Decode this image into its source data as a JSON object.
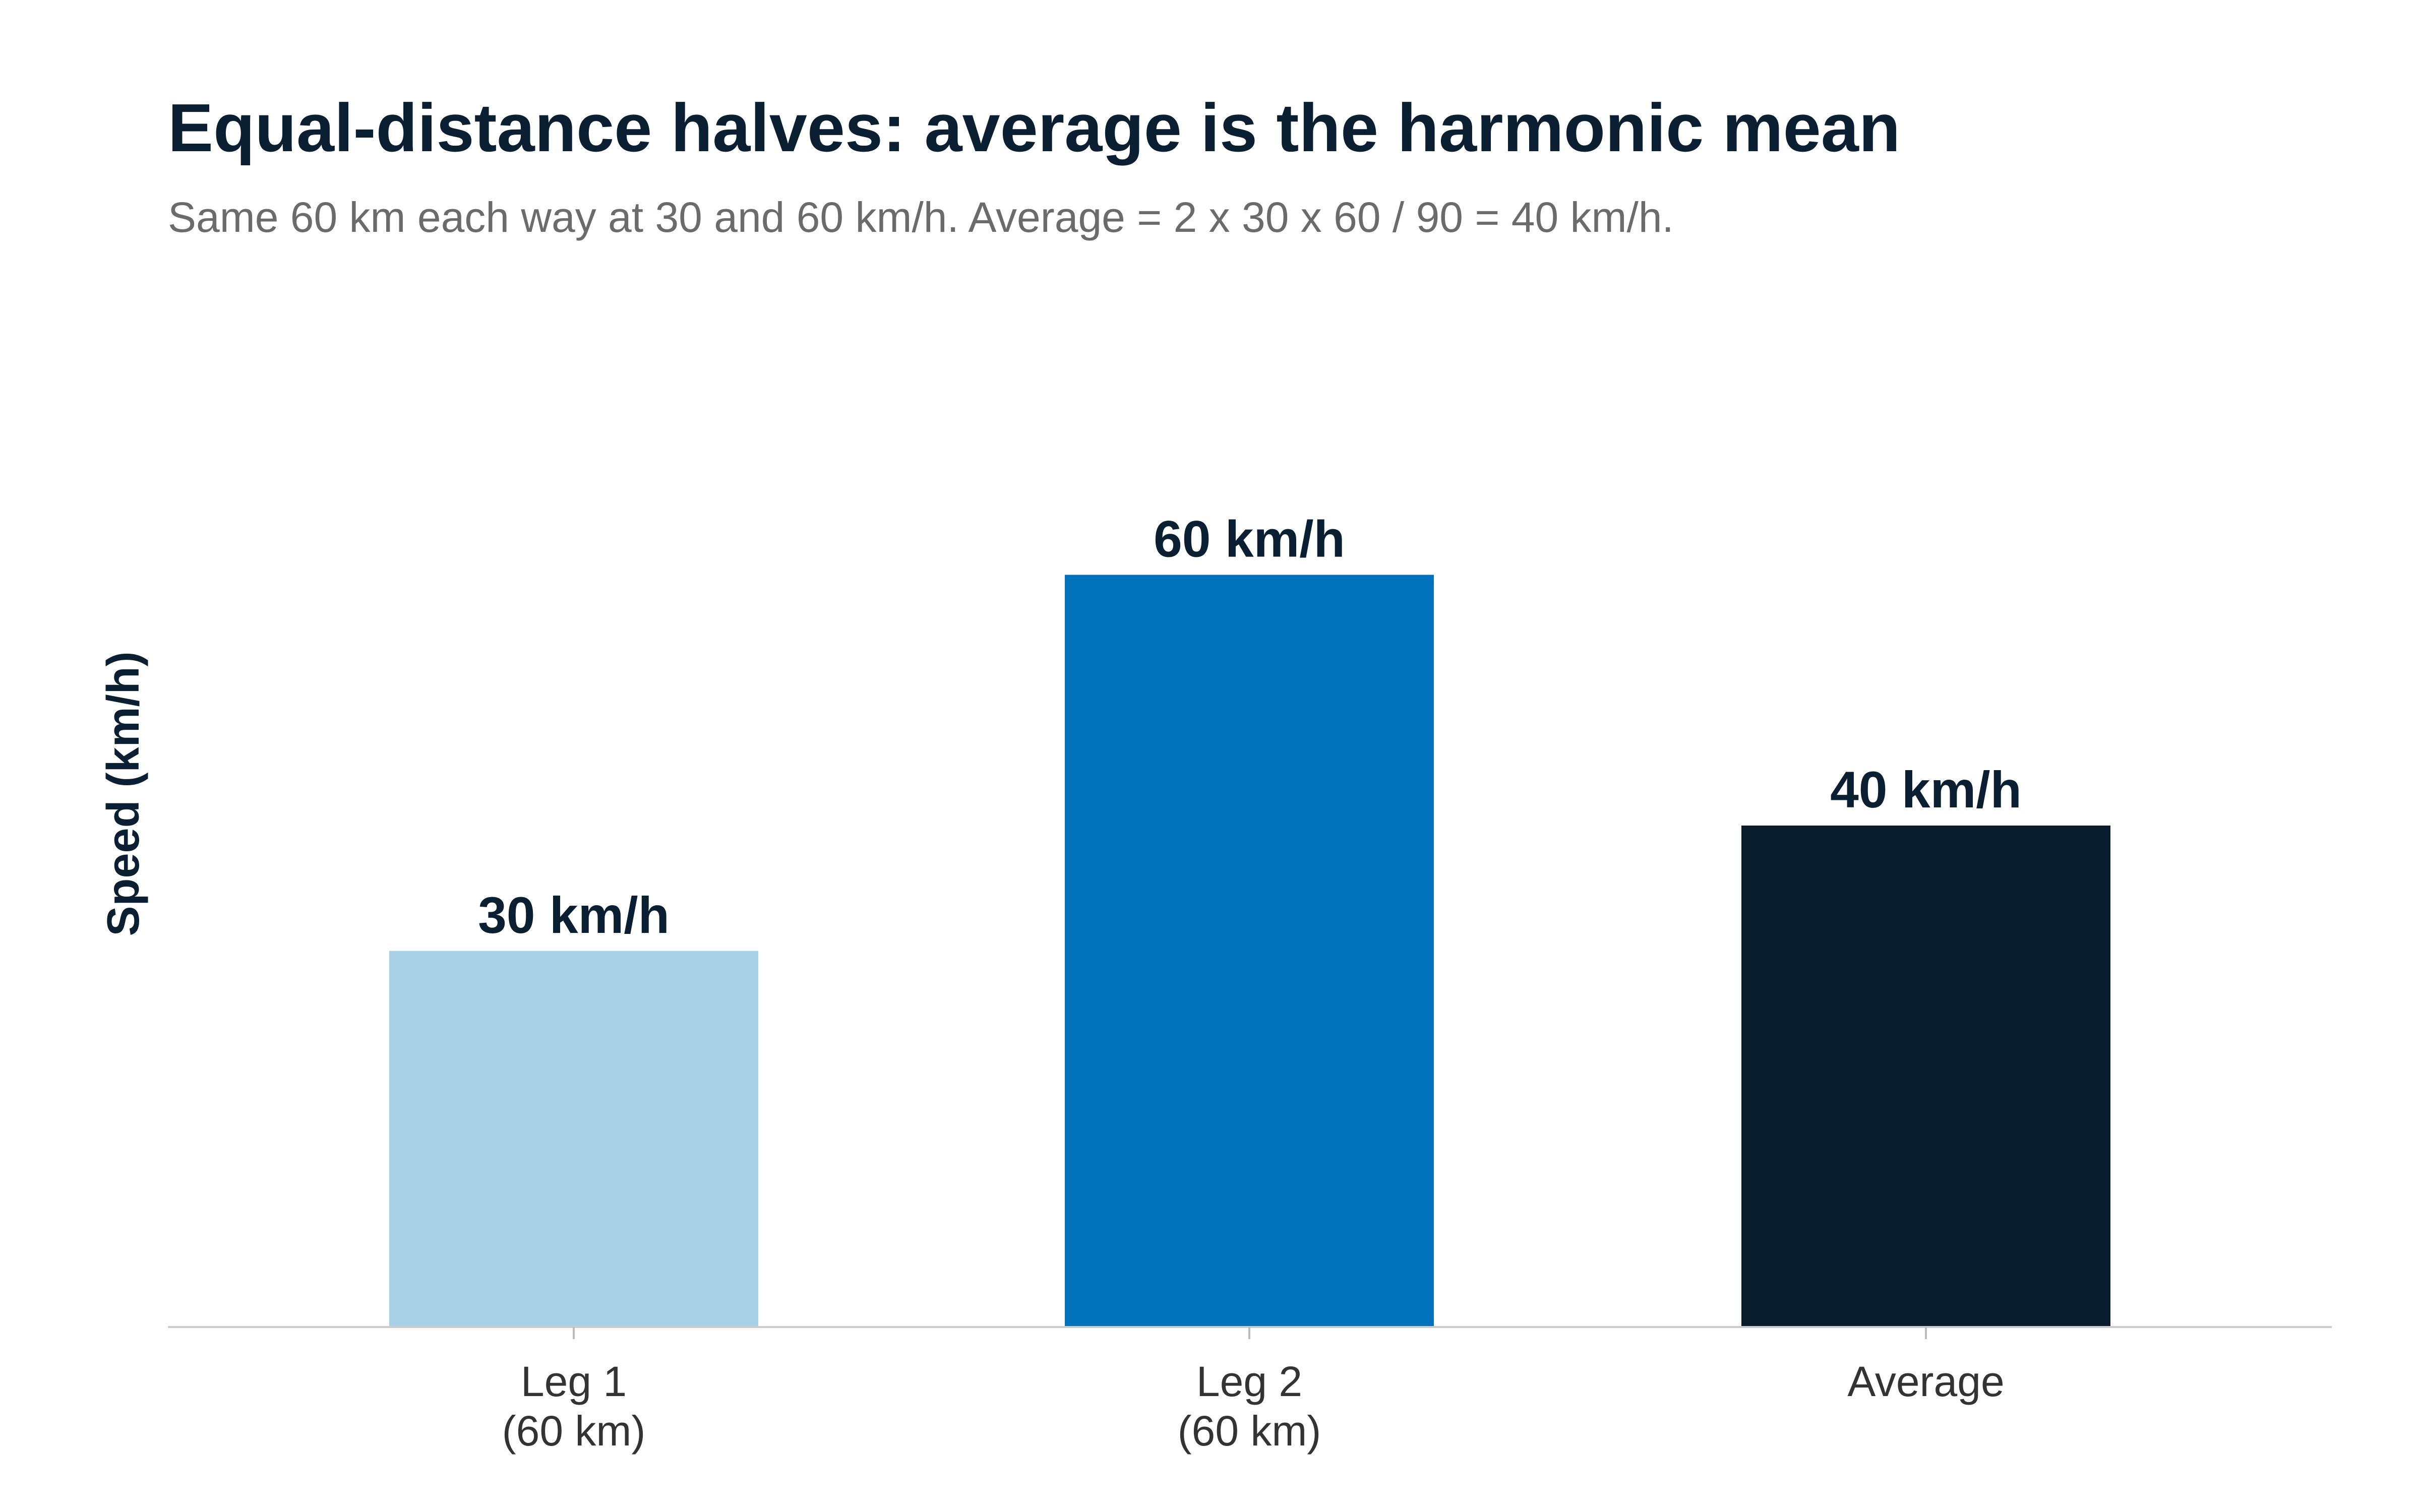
{
  "chart_data": {
    "type": "bar",
    "title": "Equal-distance halves: average is the harmonic mean",
    "subtitle": "Same 60 km each way at 30 and 60 km/h. Average = 2 x 30 x 60 / 90 = 40 km/h.",
    "xlabel": "",
    "ylabel": "Speed (km/h)",
    "ylim": [
      0,
      72
    ],
    "grid": false,
    "legend": "none",
    "categories": [
      [
        "Leg 1",
        "(60 km)"
      ],
      [
        "Leg 2",
        "(60 km)"
      ],
      [
        "Average"
      ]
    ],
    "values": [
      30,
      60,
      40
    ],
    "data_labels": [
      "30 km/h",
      "60 km/h",
      "40 km/h"
    ],
    "colors": [
      "#a8d0e6",
      "#0072bb",
      "#081c2c"
    ]
  }
}
